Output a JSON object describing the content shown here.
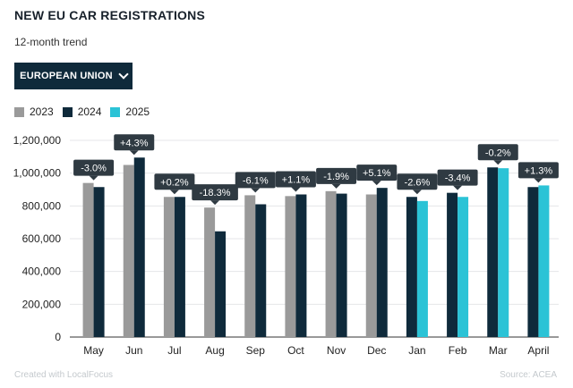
{
  "header": {
    "title": "NEW EU CAR REGISTRATIONS",
    "subtitle": "12-month trend"
  },
  "dropdown": {
    "selected": "EUROPEAN UNION",
    "icon": "chevron-down-icon"
  },
  "footer": {
    "credit": "Created with LocalFocus",
    "source": "Source: ACEA"
  },
  "colors": {
    "2023": "#9a9a9a",
    "2024": "#0f2a3b",
    "2025": "#2bc3d6",
    "label_bg": "#2f3a42"
  },
  "chart_data": {
    "type": "bar",
    "title": "NEW EU CAR REGISTRATIONS",
    "subtitle": "12-month trend",
    "categories": [
      "May",
      "Jun",
      "Jul",
      "Aug",
      "Sep",
      "Oct",
      "Nov",
      "Dec",
      "Jan",
      "Feb",
      "Mar",
      "April"
    ],
    "series": [
      {
        "name": "2023",
        "values": [
          940000,
          1050000,
          855000,
          790000,
          865000,
          860000,
          890000,
          870000,
          null,
          null,
          null,
          null
        ]
      },
      {
        "name": "2024",
        "values": [
          915000,
          1095000,
          855000,
          645000,
          810000,
          870000,
          875000,
          910000,
          855000,
          880000,
          1035000,
          915000
        ]
      },
      {
        "name": "2025",
        "values": [
          null,
          null,
          null,
          null,
          null,
          null,
          null,
          null,
          830000,
          855000,
          1030000,
          925000
        ]
      }
    ],
    "annotations": [
      "-3.0%",
      "+4.3%",
      "+0.2%",
      "-18.3%",
      "-6.1%",
      "+1.1%",
      "-1.9%",
      "+5.1%",
      "-2.6%",
      "-3.4%",
      "-0.2%",
      "+1.3%"
    ],
    "y_ticks": [
      "0",
      "200,000",
      "400,000",
      "600,000",
      "800,000",
      "1,000,000",
      "1,200,000"
    ],
    "ylim": [
      0,
      1200000
    ],
    "xlabel": "",
    "ylabel": "",
    "grid": true,
    "legend_placement": "top-left"
  }
}
